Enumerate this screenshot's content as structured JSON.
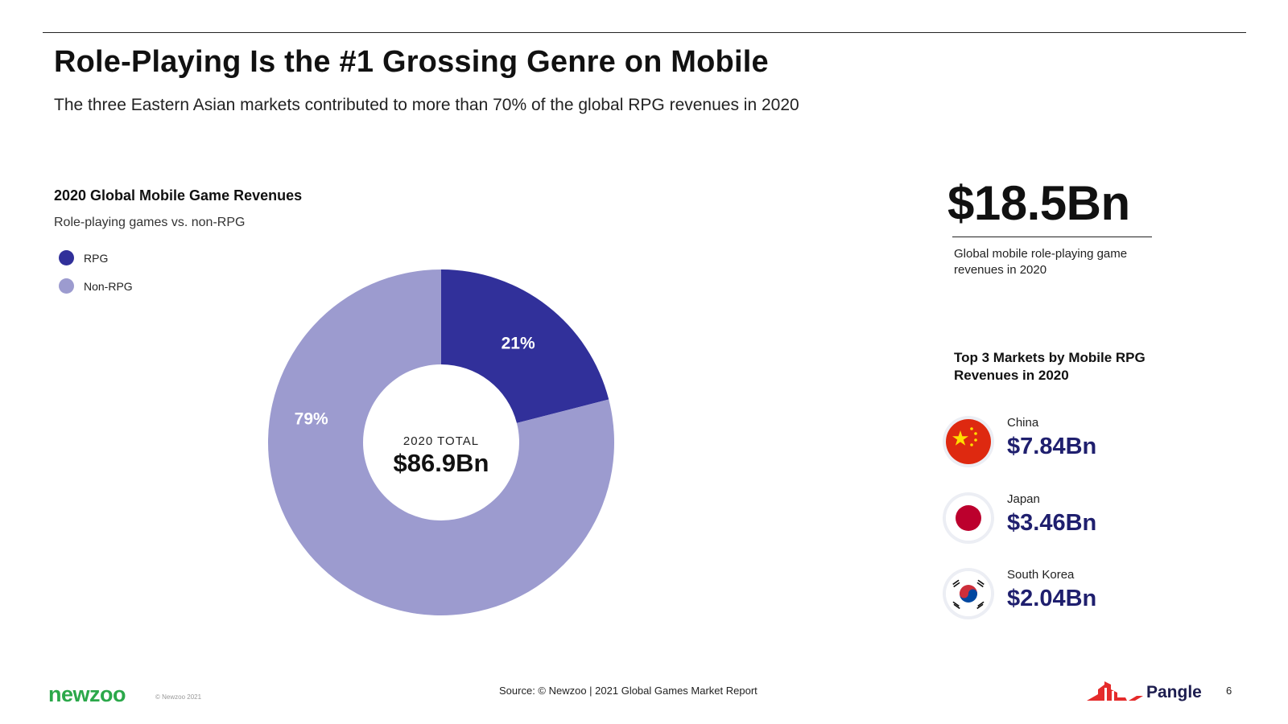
{
  "header": {
    "title": "Role-Playing Is the #1 Grossing Genre on Mobile",
    "subtitle": "The three Eastern Asian markets contributed to more than 70% of the global RPG revenues in 2020"
  },
  "chart_data": {
    "type": "pie",
    "title": "2020 Global Mobile Game Revenues",
    "subtitle": "Role-playing games vs. non-RPG",
    "legend_position": "top-left",
    "categories": [
      "RPG",
      "Non-RPG"
    ],
    "values": [
      21,
      79
    ],
    "labels": [
      "21%",
      "79%"
    ],
    "colors": [
      "#31309a",
      "#9c9bcf"
    ],
    "center_label": "2020 TOTAL",
    "center_value": "$86.9Bn"
  },
  "highlight": {
    "value": "$18.5Bn",
    "caption": "Global mobile role-playing game revenues in 2020"
  },
  "markets": {
    "title": "Top 3 Markets by Mobile RPG Revenues in 2020",
    "items": [
      {
        "name": "China",
        "value": "$7.84Bn",
        "flag": "china-flag-icon"
      },
      {
        "name": "Japan",
        "value": "$3.46Bn",
        "flag": "japan-flag-icon"
      },
      {
        "name": "South Korea",
        "value": "$2.04Bn",
        "flag": "south-korea-flag-icon"
      }
    ]
  },
  "footer": {
    "logo": "newzoo",
    "copyright": "© Newzoo 2021",
    "source": "Source: © Newzoo | 2021 Global Games Market Report",
    "brand": "Pangle",
    "page_number": "6"
  }
}
